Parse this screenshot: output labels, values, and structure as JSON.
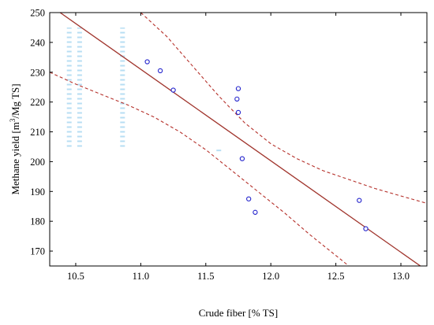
{
  "chart_data": {
    "type": "scatter",
    "xlabel": "Crude fiber [% TS]",
    "ylabel": {
      "prefix": "Methane yield [m",
      "superscript": "3",
      "suffix": "/Mg TS]"
    },
    "xlim": [
      10.3,
      13.2
    ],
    "ylim": [
      165,
      250
    ],
    "xticks": [
      "10.5",
      "11.0",
      "11.5",
      "12.0",
      "12.5",
      "13.0"
    ],
    "xtick_values": [
      10.5,
      11.0,
      11.5,
      12.0,
      12.5,
      13.0
    ],
    "yticks": [
      "170",
      "180",
      "190",
      "200",
      "210",
      "220",
      "230",
      "240",
      "250"
    ],
    "ytick_values": [
      170,
      180,
      190,
      200,
      210,
      220,
      230,
      240,
      250
    ],
    "grid": false,
    "legend": "none",
    "colors": {
      "points": "#2222cc",
      "fit": "#a0342c",
      "confidence": "#b5302a",
      "faint_marks": "#9fd4ef"
    },
    "points": [
      {
        "x": 11.05,
        "y": 233.5
      },
      {
        "x": 11.15,
        "y": 230.5
      },
      {
        "x": 11.25,
        "y": 224.0
      },
      {
        "x": 11.75,
        "y": 224.5
      },
      {
        "x": 11.74,
        "y": 221.0
      },
      {
        "x": 11.75,
        "y": 216.5
      },
      {
        "x": 11.78,
        "y": 201.0
      },
      {
        "x": 11.83,
        "y": 187.5
      },
      {
        "x": 11.88,
        "y": 183.0
      },
      {
        "x": 12.68,
        "y": 187.0
      },
      {
        "x": 12.73,
        "y": 177.5
      }
    ],
    "regression": {
      "x": [
        10.38,
        13.15
      ],
      "y": [
        250.0,
        165.0
      ]
    },
    "confidence_upper": {
      "x": [
        11.0,
        11.2,
        11.4,
        11.6,
        11.8,
        12.0,
        12.2,
        12.4,
        12.6,
        12.8,
        13.0,
        13.2
      ],
      "y": [
        250.0,
        242.0,
        232.0,
        222.0,
        213.0,
        206.0,
        201.0,
        197.0,
        194.0,
        191.0,
        188.5,
        186.0
      ]
    },
    "confidence_lower": {
      "x": [
        10.3,
        10.5,
        10.7,
        10.9,
        11.1,
        11.3,
        11.5,
        11.7,
        11.9,
        12.1,
        12.3,
        12.5,
        12.6
      ],
      "y": [
        230.0,
        226.0,
        222.5,
        219.0,
        215.0,
        210.0,
        204.0,
        197.0,
        190.0,
        183.0,
        175.5,
        168.5,
        165.0
      ]
    },
    "faint_marks": [
      {
        "x": 10.45,
        "y1": 205,
        "y2": 245
      },
      {
        "x": 10.53,
        "y1": 205,
        "y2": 245
      },
      {
        "x": 10.86,
        "y1": 205,
        "y2": 245
      },
      {
        "x": 11.6,
        "y1": 203.5,
        "y2": 204.5
      }
    ]
  }
}
